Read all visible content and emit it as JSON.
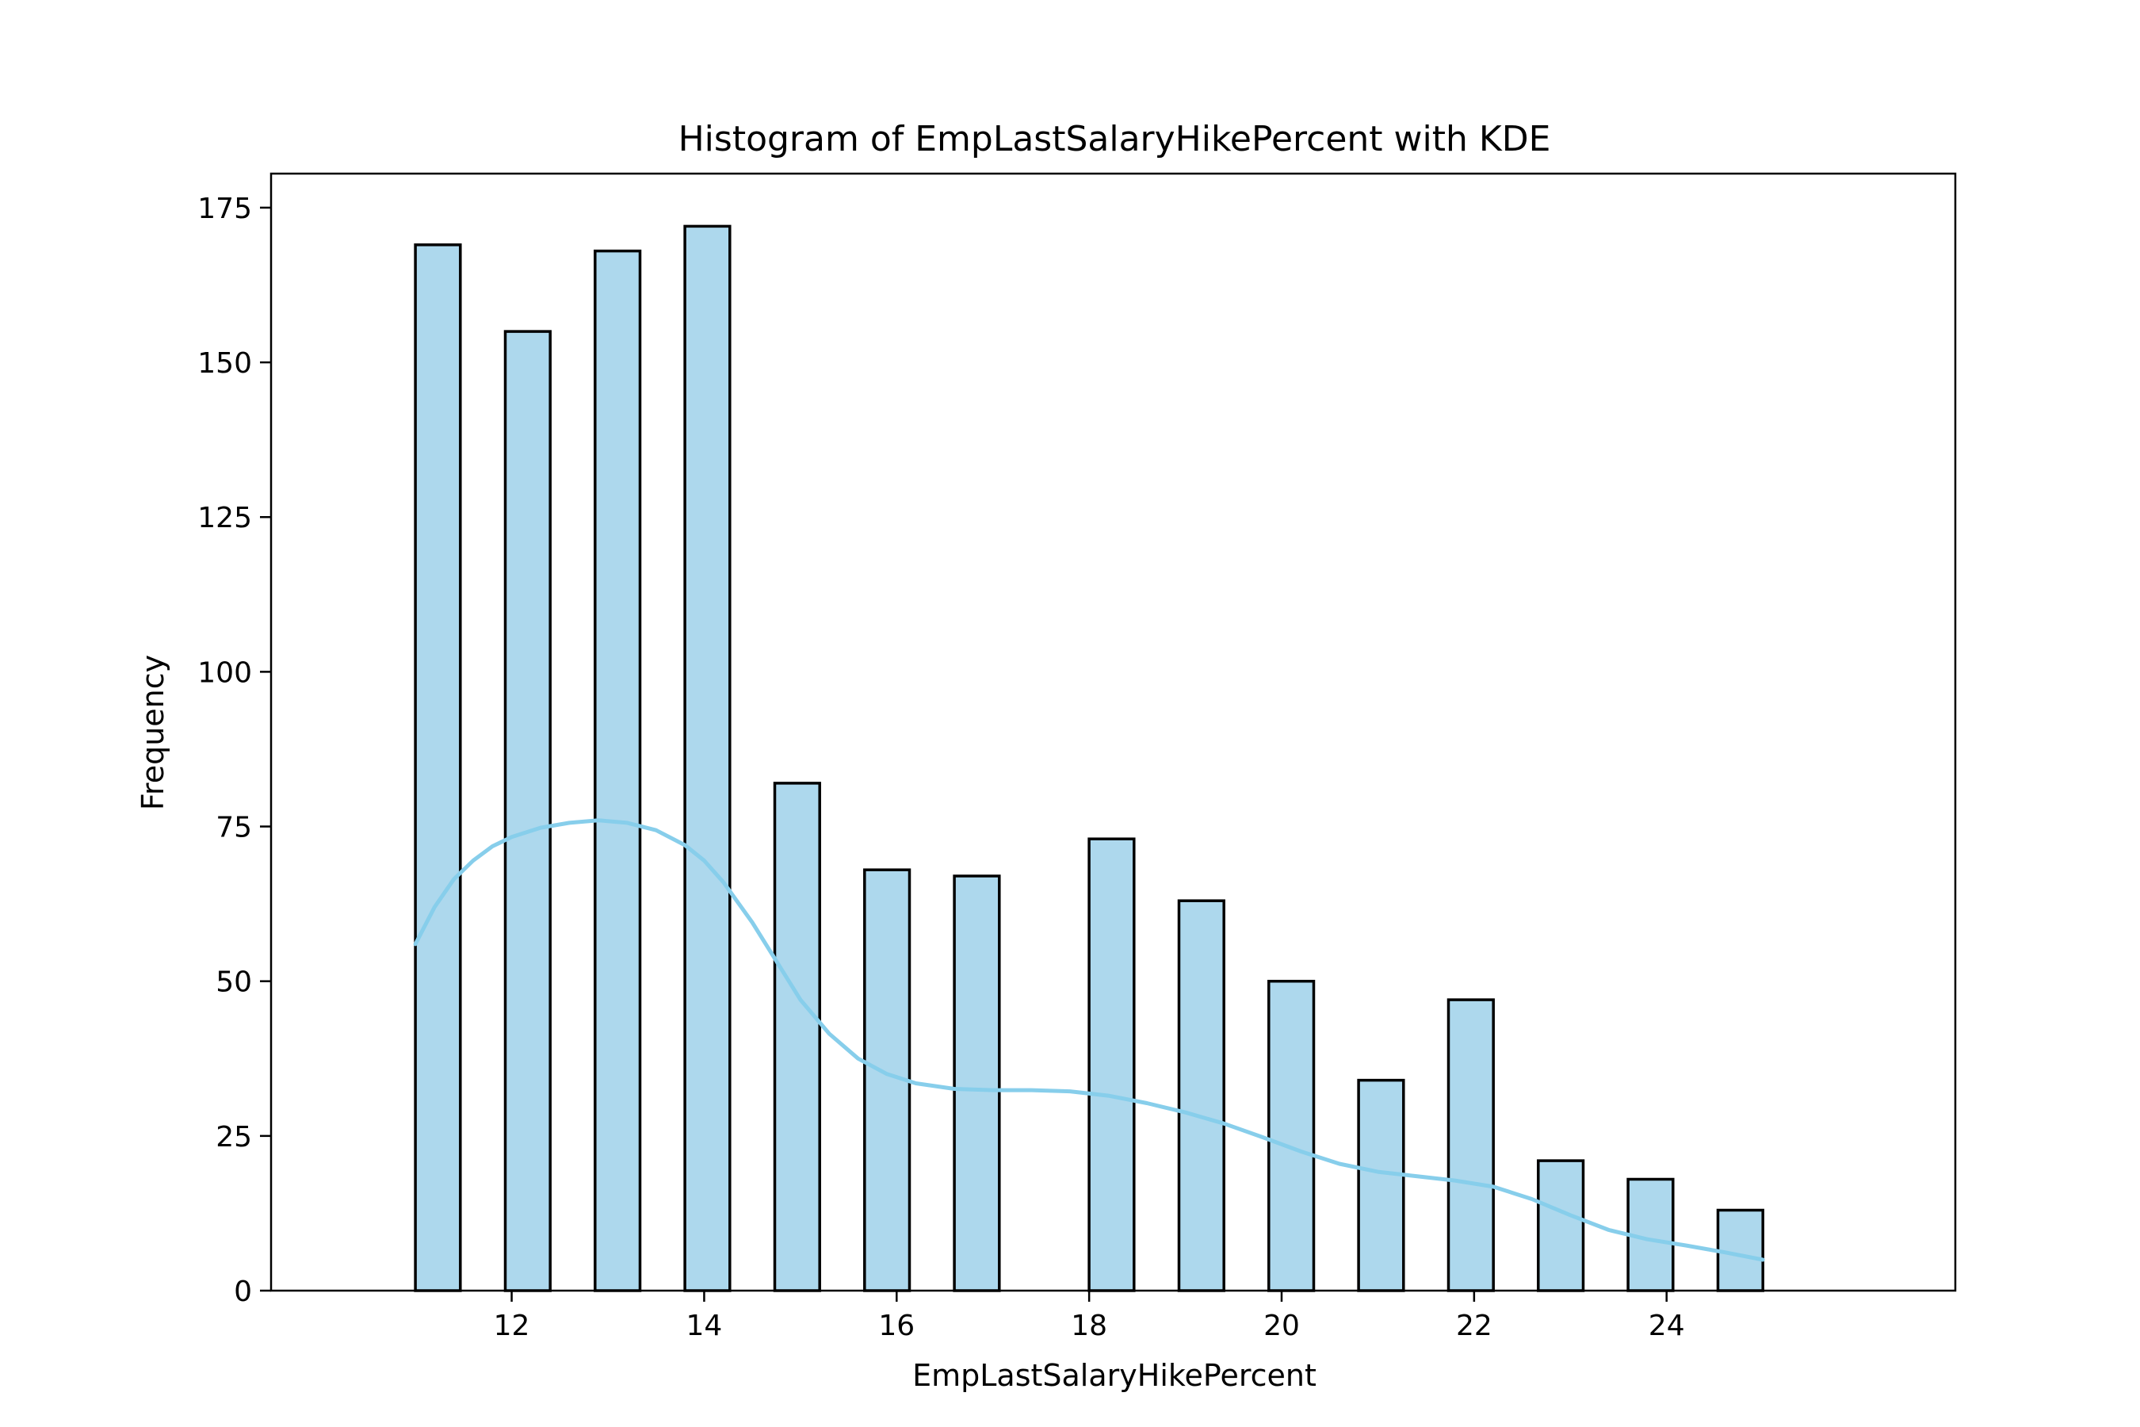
{
  "colors": {
    "bar_fill": "#add8ed",
    "bar_edge": "#000000",
    "kde_line": "#87ceeb"
  },
  "chart_data": {
    "type": "bar",
    "title": "Histogram of EmpLastSalaryHikePercent with KDE",
    "xlabel": "EmpLastSalaryHikePercent",
    "ylabel": "Frequency",
    "xlim": [
      9.5,
      27.0
    ],
    "ylim": [
      0,
      175
    ],
    "display_ymax": 180.5,
    "grid": false,
    "legend": "none",
    "bin_width": 0.4667,
    "x_ticks": [
      12,
      14,
      16,
      18,
      20,
      22,
      24
    ],
    "y_ticks": [
      0,
      25,
      50,
      75,
      100,
      125,
      150,
      175
    ],
    "bins": [
      {
        "x": 11.0,
        "value": 169
      },
      {
        "x": 11.9333,
        "value": 155
      },
      {
        "x": 12.8667,
        "value": 168
      },
      {
        "x": 13.8,
        "value": 172
      },
      {
        "x": 14.7333,
        "value": 82
      },
      {
        "x": 15.6667,
        "value": 68
      },
      {
        "x": 16.6,
        "value": 67
      },
      {
        "x": 18.0,
        "value": 73
      },
      {
        "x": 18.9333,
        "value": 63
      },
      {
        "x": 19.8667,
        "value": 50
      },
      {
        "x": 20.8,
        "value": 34
      },
      {
        "x": 21.7333,
        "value": 47
      },
      {
        "x": 22.6667,
        "value": 21
      },
      {
        "x": 23.6,
        "value": 18
      },
      {
        "x": 24.5333,
        "value": 13
      }
    ],
    "kde": {
      "x": [
        11.0,
        11.2,
        11.4,
        11.6,
        11.8,
        12.0,
        12.3,
        12.6,
        12.9,
        13.2,
        13.5,
        13.8,
        14.0,
        14.2,
        14.5,
        14.8,
        15.0,
        15.3,
        15.6,
        15.9,
        16.2,
        16.6,
        17.0,
        17.4,
        17.8,
        18.2,
        18.6,
        19.0,
        19.4,
        19.8,
        20.2,
        20.6,
        21.0,
        21.4,
        21.8,
        22.2,
        22.6,
        23.0,
        23.4,
        23.8,
        24.2,
        24.6,
        25.0
      ],
      "y": [
        56,
        62,
        66.5,
        69.5,
        71.8,
        73.3,
        74.8,
        75.6,
        76,
        75.6,
        74.4,
        72,
        69.5,
        66,
        59.5,
        52,
        47,
        41.5,
        37.5,
        35,
        33.5,
        32.6,
        32.4,
        32.4,
        32.2,
        31.5,
        30.3,
        28.8,
        27,
        24.8,
        22.5,
        20.5,
        19.2,
        18.5,
        17.8,
        16.8,
        14.8,
        12.2,
        9.8,
        8.3,
        7.3,
        6.2,
        5
      ]
    }
  }
}
